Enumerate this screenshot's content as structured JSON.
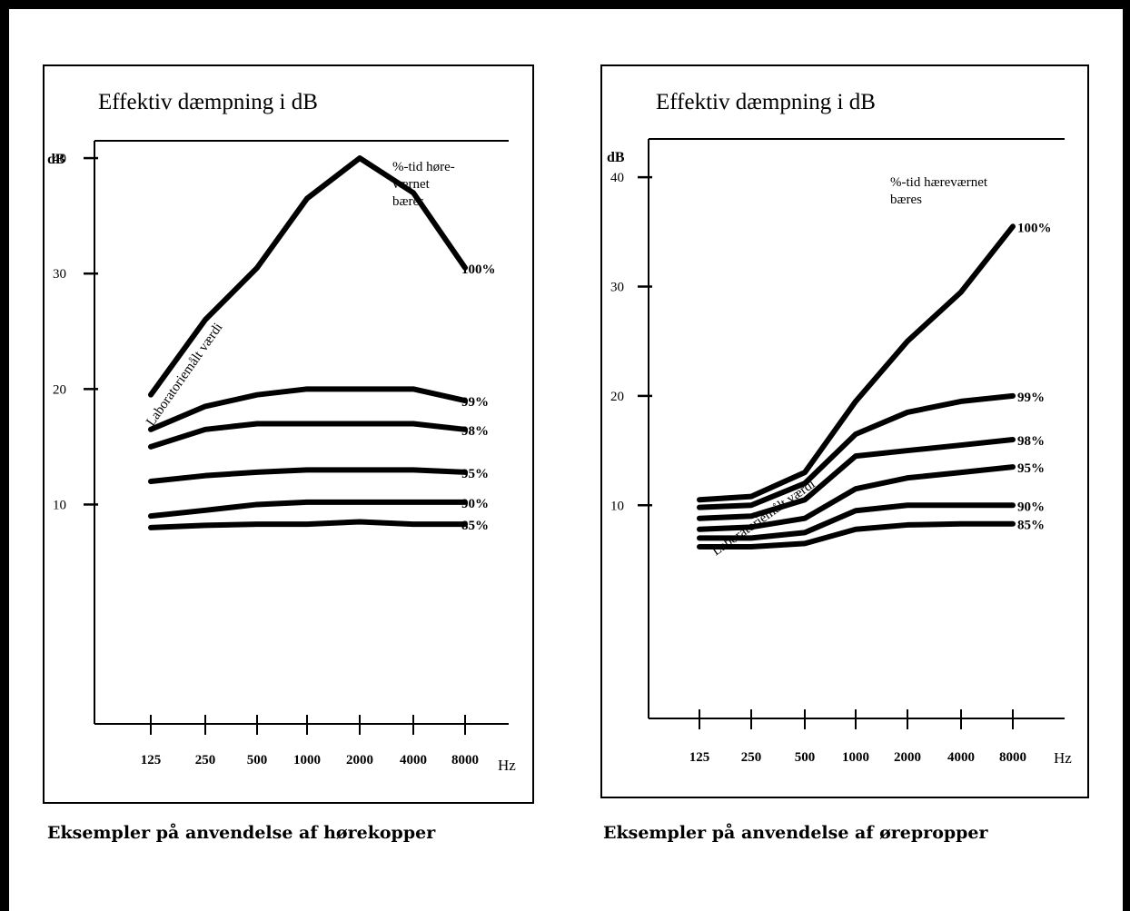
{
  "chart_data": [
    {
      "type": "line",
      "title": "Effektiv dæmpning i dB",
      "caption": "Eksempler på anvendelse af hørekopper",
      "ylabel": "dB",
      "xlabel": "Hz",
      "legend_title": [
        "%-tid høre-",
        "værnet",
        "bæres"
      ],
      "curve_label": "Laboratoriemålt værdi",
      "categories": [
        "125",
        "250",
        "500",
        "1000",
        "2000",
        "4000",
        "8000"
      ],
      "yticks": [
        "10",
        "20",
        "30",
        "40"
      ],
      "ylim": [
        -9,
        41.5
      ],
      "series": [
        {
          "name": "100%",
          "values": [
            19.5,
            26,
            30.5,
            36.5,
            40,
            37,
            30.5
          ]
        },
        {
          "name": "99%",
          "values": [
            16.5,
            18.5,
            19.5,
            20,
            20,
            20,
            19
          ]
        },
        {
          "name": "98%",
          "values": [
            15,
            16.5,
            17,
            17,
            17,
            17,
            16.5
          ]
        },
        {
          "name": "95%",
          "values": [
            12,
            12.5,
            12.8,
            13,
            13,
            13,
            12.8
          ]
        },
        {
          "name": "90%",
          "values": [
            9,
            9.5,
            10,
            10.2,
            10.2,
            10.2,
            10.2
          ]
        },
        {
          "name": "85%",
          "values": [
            8,
            8.2,
            8.3,
            8.3,
            8.5,
            8.3,
            8.3
          ]
        }
      ]
    },
    {
      "type": "line",
      "title": "Effektiv dæmpning i dB",
      "caption": "Eksempler på anvendelse af ørepropper",
      "ylabel": "dB",
      "xlabel": "Hz",
      "legend_title": [
        "%-tid hæreværnet",
        "bæres"
      ],
      "curve_label": "Laboratoriemålt værdi",
      "categories": [
        "125",
        "250",
        "500",
        "1000",
        "2000",
        "4000",
        "8000"
      ],
      "yticks": [
        "10",
        "20",
        "30",
        "40"
      ],
      "ylim": [
        -9.5,
        43.5
      ],
      "series": [
        {
          "name": "100%",
          "values": [
            10.5,
            10.8,
            13,
            19.5,
            25,
            29.5,
            35.5
          ]
        },
        {
          "name": "99%",
          "values": [
            9.8,
            10,
            12,
            16.5,
            18.5,
            19.5,
            20
          ]
        },
        {
          "name": "98%",
          "values": [
            8.8,
            9,
            10.5,
            14.5,
            15,
            15.5,
            16
          ]
        },
        {
          "name": "95%",
          "values": [
            7.8,
            8,
            8.8,
            11.5,
            12.5,
            13,
            13.5
          ]
        },
        {
          "name": "90%",
          "values": [
            7,
            7,
            7.5,
            9.5,
            10,
            10,
            10
          ]
        },
        {
          "name": "85%",
          "values": [
            6.2,
            6.2,
            6.5,
            7.8,
            8.2,
            8.3,
            8.3
          ]
        }
      ]
    }
  ]
}
